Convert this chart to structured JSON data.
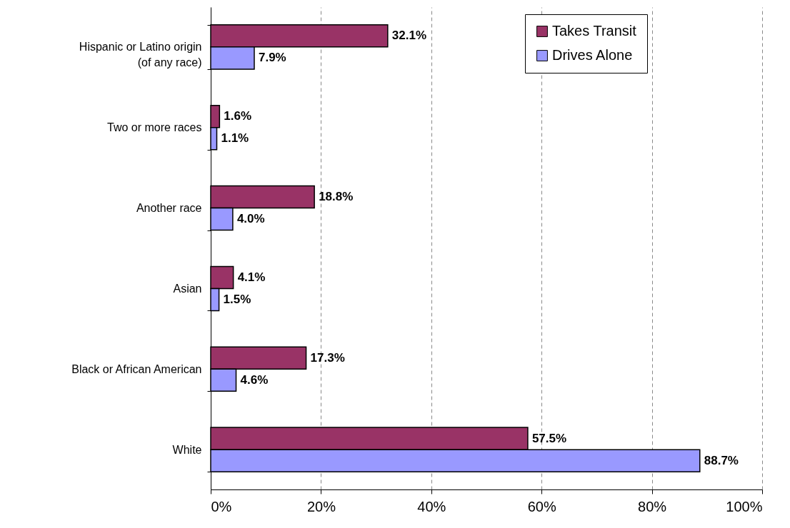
{
  "chart_data": {
    "type": "bar",
    "orientation": "horizontal",
    "categories": [
      "Hispanic or Latino origin (of any race)",
      "Two or more races",
      "Another race",
      "Asian",
      "Black or African American",
      "White"
    ],
    "series": [
      {
        "name": "Takes Transit",
        "color": "#993366",
        "values": [
          32.1,
          1.6,
          18.8,
          4.1,
          17.3,
          57.5
        ],
        "value_labels": [
          "32.1%",
          "1.6%",
          "18.8%",
          "4.1%",
          "17.3%",
          "57.5%"
        ]
      },
      {
        "name": "Drives Alone",
        "color": "#9999ff",
        "values": [
          7.9,
          1.1,
          4.0,
          1.5,
          4.6,
          88.7
        ],
        "value_labels": [
          "7.9%",
          "1.1%",
          "4.0%",
          "1.5%",
          "4.6%",
          "88.7%"
        ]
      }
    ],
    "xlim": [
      0,
      100
    ],
    "xticks": [
      {
        "value": 0,
        "label": "0%"
      },
      {
        "value": 20,
        "label": "20%"
      },
      {
        "value": 40,
        "label": "40%"
      },
      {
        "value": 60,
        "label": "60%"
      },
      {
        "value": 80,
        "label": "80%"
      },
      {
        "value": 100,
        "label": "100%"
      }
    ],
    "grid": "x",
    "legend": "top right"
  }
}
